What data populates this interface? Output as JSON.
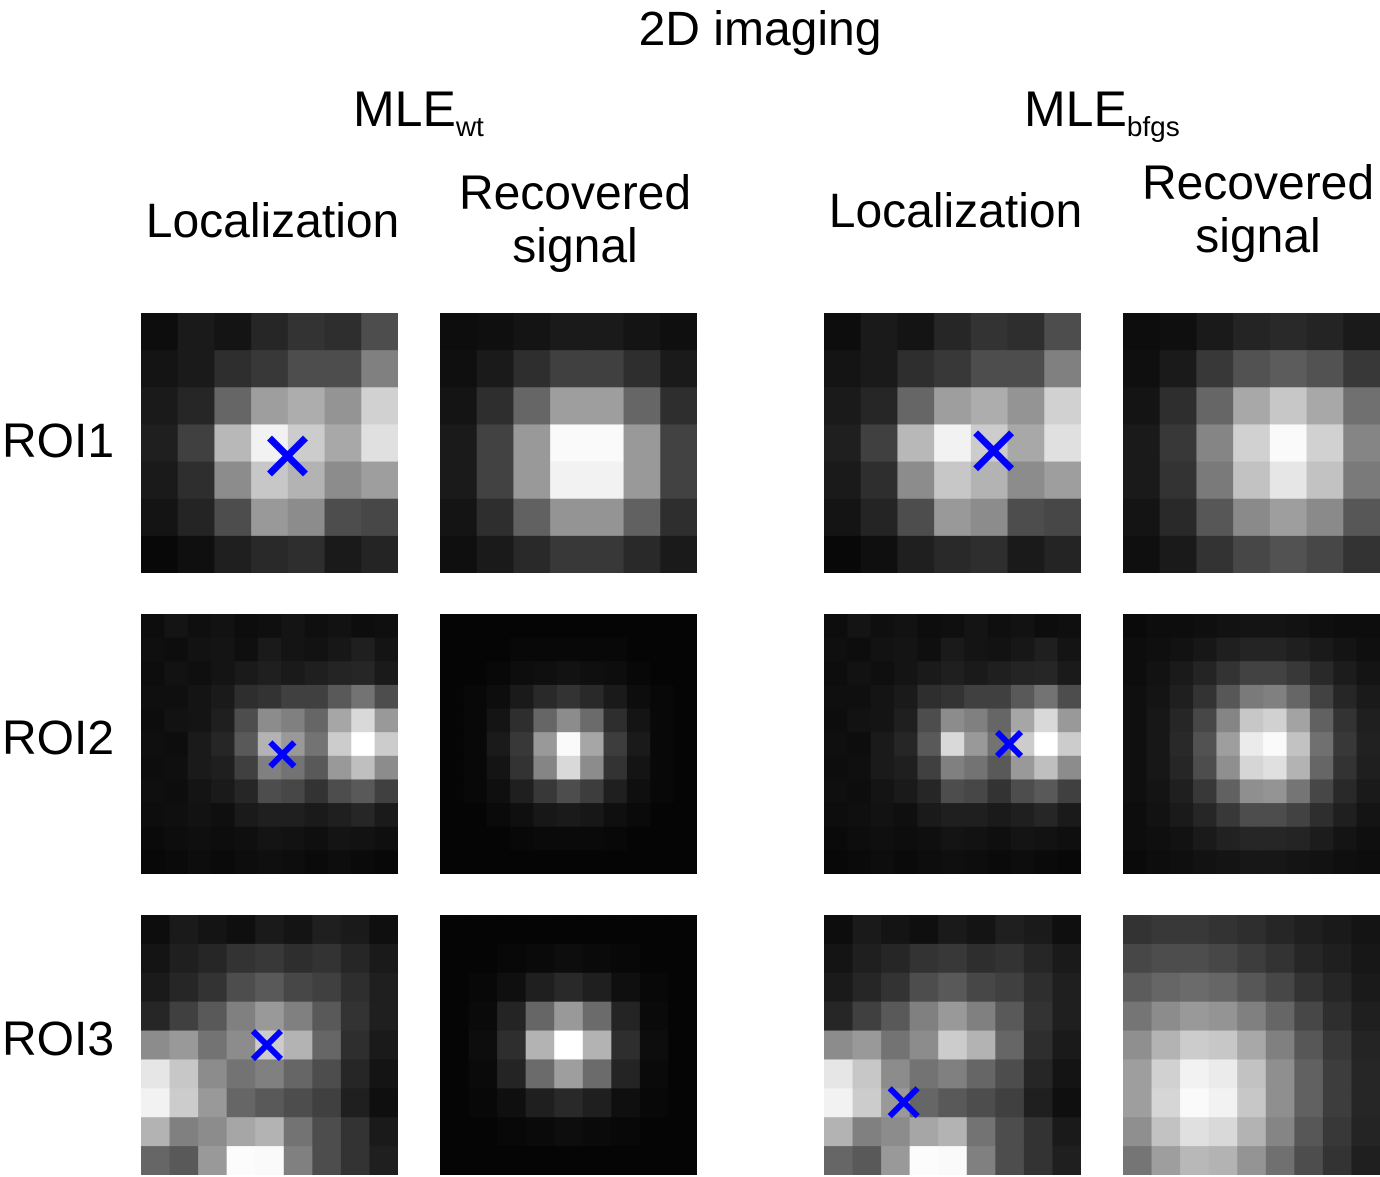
{
  "title": "2D imaging",
  "methods": [
    {
      "base": "MLE",
      "sub": "wt"
    },
    {
      "base": "MLE",
      "sub": "bfgs"
    }
  ],
  "column_headers": {
    "localization": "Localization",
    "recovered_line1": "Recovered",
    "recovered_line2": "signal"
  },
  "rows": [
    "ROI1",
    "ROI2",
    "ROI3"
  ],
  "marker_color": "#0000ff",
  "panels": {
    "roi1_wt_loc": {
      "cols": 7,
      "rows": 7,
      "marker": [
        0.57,
        0.55
      ],
      "marker_size": 36,
      "grid": [
        [
          0.05,
          0.1,
          0.08,
          0.15,
          0.2,
          0.18,
          0.3
        ],
        [
          0.08,
          0.1,
          0.18,
          0.22,
          0.3,
          0.3,
          0.5
        ],
        [
          0.1,
          0.15,
          0.4,
          0.62,
          0.68,
          0.58,
          0.82
        ],
        [
          0.12,
          0.25,
          0.72,
          0.95,
          0.8,
          0.66,
          0.88
        ],
        [
          0.1,
          0.18,
          0.55,
          0.78,
          0.7,
          0.55,
          0.62
        ],
        [
          0.08,
          0.14,
          0.3,
          0.6,
          0.55,
          0.3,
          0.28
        ],
        [
          0.03,
          0.06,
          0.12,
          0.16,
          0.18,
          0.1,
          0.14
        ]
      ]
    },
    "roi1_wt_rec": {
      "cols": 7,
      "rows": 7,
      "grid": [
        [
          0.05,
          0.06,
          0.08,
          0.1,
          0.1,
          0.08,
          0.06
        ],
        [
          0.06,
          0.1,
          0.18,
          0.25,
          0.25,
          0.18,
          0.1
        ],
        [
          0.08,
          0.18,
          0.4,
          0.62,
          0.62,
          0.4,
          0.18
        ],
        [
          0.1,
          0.26,
          0.6,
          0.98,
          0.98,
          0.6,
          0.26
        ],
        [
          0.1,
          0.26,
          0.6,
          0.95,
          0.95,
          0.6,
          0.26
        ],
        [
          0.08,
          0.18,
          0.38,
          0.58,
          0.58,
          0.38,
          0.18
        ],
        [
          0.06,
          0.1,
          0.16,
          0.22,
          0.22,
          0.16,
          0.1
        ]
      ]
    },
    "roi1_bfgs_loc": {
      "cols": 7,
      "rows": 7,
      "marker": [
        0.66,
        0.53
      ],
      "marker_size": 36,
      "grid": [
        [
          0.05,
          0.1,
          0.08,
          0.15,
          0.2,
          0.18,
          0.3
        ],
        [
          0.08,
          0.1,
          0.18,
          0.22,
          0.3,
          0.3,
          0.5
        ],
        [
          0.1,
          0.15,
          0.4,
          0.62,
          0.68,
          0.58,
          0.82
        ],
        [
          0.12,
          0.25,
          0.72,
          0.95,
          0.8,
          0.66,
          0.88
        ],
        [
          0.1,
          0.18,
          0.55,
          0.78,
          0.7,
          0.55,
          0.62
        ],
        [
          0.08,
          0.14,
          0.3,
          0.6,
          0.55,
          0.3,
          0.28
        ],
        [
          0.03,
          0.06,
          0.12,
          0.16,
          0.18,
          0.1,
          0.14
        ]
      ]
    },
    "roi1_bfgs_rec": {
      "cols": 7,
      "rows": 7,
      "grid": [
        [
          0.05,
          0.06,
          0.1,
          0.14,
          0.16,
          0.14,
          0.1
        ],
        [
          0.06,
          0.1,
          0.22,
          0.32,
          0.36,
          0.32,
          0.22
        ],
        [
          0.08,
          0.18,
          0.4,
          0.66,
          0.78,
          0.66,
          0.44
        ],
        [
          0.1,
          0.22,
          0.52,
          0.82,
          0.98,
          0.82,
          0.52
        ],
        [
          0.1,
          0.2,
          0.48,
          0.76,
          0.9,
          0.76,
          0.48
        ],
        [
          0.08,
          0.16,
          0.34,
          0.54,
          0.62,
          0.54,
          0.34
        ],
        [
          0.06,
          0.1,
          0.2,
          0.28,
          0.32,
          0.28,
          0.2
        ]
      ]
    },
    "roi2_wt_loc": {
      "cols": 11,
      "rows": 11,
      "marker": [
        0.55,
        0.54
      ],
      "marker_size": 24,
      "grid": [
        [
          0.05,
          0.08,
          0.06,
          0.07,
          0.05,
          0.06,
          0.08,
          0.06,
          0.07,
          0.05,
          0.06
        ],
        [
          0.06,
          0.05,
          0.07,
          0.08,
          0.06,
          0.1,
          0.08,
          0.07,
          0.09,
          0.12,
          0.08
        ],
        [
          0.05,
          0.07,
          0.06,
          0.08,
          0.1,
          0.12,
          0.1,
          0.12,
          0.14,
          0.15,
          0.1
        ],
        [
          0.06,
          0.06,
          0.08,
          0.1,
          0.18,
          0.2,
          0.25,
          0.25,
          0.35,
          0.45,
          0.3
        ],
        [
          0.05,
          0.07,
          0.08,
          0.12,
          0.3,
          0.55,
          0.5,
          0.4,
          0.65,
          0.85,
          0.6
        ],
        [
          0.06,
          0.05,
          0.1,
          0.15,
          0.35,
          0.7,
          0.6,
          0.45,
          0.8,
          1.0,
          0.8
        ],
        [
          0.05,
          0.06,
          0.1,
          0.12,
          0.25,
          0.5,
          0.45,
          0.35,
          0.6,
          0.75,
          0.55
        ],
        [
          0.06,
          0.05,
          0.08,
          0.1,
          0.15,
          0.3,
          0.28,
          0.2,
          0.3,
          0.35,
          0.25
        ],
        [
          0.05,
          0.06,
          0.07,
          0.06,
          0.1,
          0.12,
          0.12,
          0.1,
          0.12,
          0.15,
          0.1
        ],
        [
          0.04,
          0.05,
          0.06,
          0.05,
          0.06,
          0.08,
          0.07,
          0.06,
          0.08,
          0.07,
          0.06
        ],
        [
          0.03,
          0.04,
          0.05,
          0.04,
          0.05,
          0.06,
          0.05,
          0.04,
          0.05,
          0.04,
          0.03
        ]
      ]
    },
    "roi2_wt_rec": {
      "cols": 11,
      "rows": 11,
      "grid": [
        [
          0.02,
          0.02,
          0.02,
          0.02,
          0.02,
          0.02,
          0.02,
          0.02,
          0.02,
          0.02,
          0.02
        ],
        [
          0.02,
          0.02,
          0.02,
          0.03,
          0.03,
          0.03,
          0.03,
          0.03,
          0.02,
          0.02,
          0.02
        ],
        [
          0.02,
          0.02,
          0.03,
          0.05,
          0.06,
          0.07,
          0.06,
          0.05,
          0.03,
          0.02,
          0.02
        ],
        [
          0.02,
          0.03,
          0.05,
          0.1,
          0.16,
          0.2,
          0.16,
          0.1,
          0.05,
          0.03,
          0.02
        ],
        [
          0.02,
          0.03,
          0.08,
          0.18,
          0.4,
          0.55,
          0.42,
          0.18,
          0.08,
          0.03,
          0.02
        ],
        [
          0.02,
          0.03,
          0.1,
          0.22,
          0.6,
          0.98,
          0.65,
          0.24,
          0.1,
          0.03,
          0.02
        ],
        [
          0.02,
          0.03,
          0.08,
          0.2,
          0.52,
          0.85,
          0.55,
          0.2,
          0.08,
          0.03,
          0.02
        ],
        [
          0.02,
          0.03,
          0.06,
          0.12,
          0.22,
          0.3,
          0.24,
          0.12,
          0.06,
          0.03,
          0.02
        ],
        [
          0.02,
          0.02,
          0.04,
          0.06,
          0.09,
          0.1,
          0.09,
          0.06,
          0.04,
          0.02,
          0.02
        ],
        [
          0.02,
          0.02,
          0.02,
          0.03,
          0.04,
          0.04,
          0.04,
          0.03,
          0.02,
          0.02,
          0.02
        ],
        [
          0.02,
          0.02,
          0.02,
          0.02,
          0.02,
          0.02,
          0.02,
          0.02,
          0.02,
          0.02,
          0.02
        ]
      ]
    },
    "roi2_bfgs_loc": {
      "cols": 11,
      "rows": 11,
      "marker": [
        0.72,
        0.5
      ],
      "marker_size": 24,
      "grid": [
        [
          0.05,
          0.08,
          0.06,
          0.07,
          0.05,
          0.06,
          0.08,
          0.06,
          0.07,
          0.05,
          0.06
        ],
        [
          0.06,
          0.05,
          0.07,
          0.08,
          0.06,
          0.1,
          0.08,
          0.07,
          0.09,
          0.12,
          0.08
        ],
        [
          0.05,
          0.07,
          0.06,
          0.08,
          0.1,
          0.12,
          0.1,
          0.12,
          0.14,
          0.15,
          0.1
        ],
        [
          0.06,
          0.06,
          0.08,
          0.1,
          0.18,
          0.2,
          0.25,
          0.25,
          0.35,
          0.45,
          0.3
        ],
        [
          0.05,
          0.07,
          0.08,
          0.12,
          0.3,
          0.55,
          0.5,
          0.4,
          0.65,
          0.85,
          0.6
        ],
        [
          0.06,
          0.05,
          0.1,
          0.15,
          0.35,
          0.85,
          0.6,
          0.45,
          0.8,
          1.0,
          0.8
        ],
        [
          0.05,
          0.06,
          0.1,
          0.12,
          0.25,
          0.5,
          0.45,
          0.35,
          0.6,
          0.75,
          0.55
        ],
        [
          0.06,
          0.05,
          0.08,
          0.1,
          0.15,
          0.3,
          0.28,
          0.2,
          0.3,
          0.35,
          0.25
        ],
        [
          0.05,
          0.06,
          0.07,
          0.06,
          0.1,
          0.12,
          0.12,
          0.1,
          0.12,
          0.15,
          0.1
        ],
        [
          0.04,
          0.05,
          0.06,
          0.05,
          0.06,
          0.08,
          0.07,
          0.06,
          0.08,
          0.07,
          0.06
        ],
        [
          0.03,
          0.04,
          0.05,
          0.04,
          0.05,
          0.06,
          0.05,
          0.04,
          0.05,
          0.04,
          0.03
        ]
      ]
    },
    "roi2_bfgs_rec": {
      "cols": 11,
      "rows": 11,
      "grid": [
        [
          0.04,
          0.05,
          0.05,
          0.06,
          0.07,
          0.08,
          0.08,
          0.07,
          0.06,
          0.05,
          0.05
        ],
        [
          0.05,
          0.06,
          0.07,
          0.09,
          0.12,
          0.14,
          0.14,
          0.12,
          0.1,
          0.08,
          0.06
        ],
        [
          0.05,
          0.07,
          0.1,
          0.14,
          0.2,
          0.26,
          0.26,
          0.22,
          0.16,
          0.11,
          0.08
        ],
        [
          0.06,
          0.08,
          0.12,
          0.2,
          0.34,
          0.48,
          0.5,
          0.4,
          0.26,
          0.15,
          0.1
        ],
        [
          0.06,
          0.09,
          0.15,
          0.28,
          0.52,
          0.78,
          0.82,
          0.64,
          0.38,
          0.2,
          0.12
        ],
        [
          0.06,
          0.09,
          0.16,
          0.32,
          0.62,
          0.92,
          0.98,
          0.76,
          0.44,
          0.22,
          0.13
        ],
        [
          0.06,
          0.09,
          0.15,
          0.3,
          0.56,
          0.84,
          0.88,
          0.7,
          0.4,
          0.2,
          0.12
        ],
        [
          0.06,
          0.08,
          0.12,
          0.22,
          0.38,
          0.56,
          0.58,
          0.46,
          0.28,
          0.16,
          0.1
        ],
        [
          0.05,
          0.07,
          0.1,
          0.15,
          0.22,
          0.3,
          0.3,
          0.26,
          0.18,
          0.12,
          0.08
        ],
        [
          0.05,
          0.06,
          0.07,
          0.1,
          0.13,
          0.15,
          0.15,
          0.14,
          0.11,
          0.08,
          0.06
        ],
        [
          0.04,
          0.05,
          0.06,
          0.07,
          0.08,
          0.09,
          0.09,
          0.08,
          0.07,
          0.06,
          0.05
        ]
      ]
    },
    "roi3_wt_loc": {
      "cols": 9,
      "rows": 9,
      "marker": [
        0.49,
        0.5
      ],
      "marker_size": 28,
      "grid": [
        [
          0.05,
          0.1,
          0.08,
          0.06,
          0.1,
          0.08,
          0.12,
          0.1,
          0.06
        ],
        [
          0.08,
          0.12,
          0.15,
          0.2,
          0.22,
          0.18,
          0.2,
          0.15,
          0.1
        ],
        [
          0.1,
          0.15,
          0.2,
          0.3,
          0.35,
          0.28,
          0.25,
          0.18,
          0.12
        ],
        [
          0.15,
          0.25,
          0.35,
          0.5,
          0.6,
          0.5,
          0.35,
          0.2,
          0.12
        ],
        [
          0.55,
          0.6,
          0.45,
          0.55,
          0.8,
          0.7,
          0.4,
          0.18,
          0.1
        ],
        [
          0.9,
          0.78,
          0.55,
          0.45,
          0.5,
          0.4,
          0.3,
          0.15,
          0.08
        ],
        [
          0.95,
          0.8,
          0.6,
          0.4,
          0.35,
          0.3,
          0.25,
          0.12,
          0.06
        ],
        [
          0.7,
          0.5,
          0.55,
          0.65,
          0.7,
          0.45,
          0.3,
          0.2,
          0.1
        ],
        [
          0.4,
          0.35,
          0.6,
          0.99,
          0.98,
          0.5,
          0.3,
          0.2,
          0.12
        ]
      ]
    },
    "roi3_wt_rec": {
      "cols": 9,
      "rows": 9,
      "grid": [
        [
          0.02,
          0.02,
          0.02,
          0.02,
          0.02,
          0.02,
          0.02,
          0.02,
          0.02
        ],
        [
          0.02,
          0.02,
          0.03,
          0.04,
          0.05,
          0.04,
          0.03,
          0.02,
          0.02
        ],
        [
          0.02,
          0.03,
          0.06,
          0.12,
          0.16,
          0.12,
          0.06,
          0.03,
          0.02
        ],
        [
          0.02,
          0.04,
          0.14,
          0.4,
          0.6,
          0.42,
          0.14,
          0.04,
          0.02
        ],
        [
          0.02,
          0.05,
          0.18,
          0.7,
          1.0,
          0.7,
          0.18,
          0.05,
          0.02
        ],
        [
          0.02,
          0.04,
          0.14,
          0.42,
          0.62,
          0.42,
          0.14,
          0.04,
          0.02
        ],
        [
          0.02,
          0.03,
          0.06,
          0.12,
          0.16,
          0.12,
          0.06,
          0.03,
          0.02
        ],
        [
          0.02,
          0.02,
          0.03,
          0.04,
          0.05,
          0.04,
          0.03,
          0.02,
          0.02
        ],
        [
          0.02,
          0.02,
          0.02,
          0.02,
          0.02,
          0.02,
          0.02,
          0.02,
          0.02
        ]
      ]
    },
    "roi3_bfgs_loc": {
      "cols": 9,
      "rows": 9,
      "marker": [
        0.31,
        0.72
      ],
      "marker_size": 28,
      "grid": [
        [
          0.05,
          0.1,
          0.08,
          0.06,
          0.1,
          0.08,
          0.12,
          0.1,
          0.06
        ],
        [
          0.08,
          0.12,
          0.15,
          0.2,
          0.22,
          0.18,
          0.2,
          0.15,
          0.1
        ],
        [
          0.1,
          0.15,
          0.2,
          0.3,
          0.35,
          0.28,
          0.25,
          0.18,
          0.12
        ],
        [
          0.15,
          0.25,
          0.35,
          0.5,
          0.6,
          0.5,
          0.35,
          0.2,
          0.12
        ],
        [
          0.55,
          0.6,
          0.45,
          0.55,
          0.8,
          0.7,
          0.4,
          0.18,
          0.1
        ],
        [
          0.9,
          0.78,
          0.55,
          0.45,
          0.5,
          0.4,
          0.3,
          0.15,
          0.08
        ],
        [
          0.95,
          0.8,
          0.6,
          0.4,
          0.35,
          0.3,
          0.25,
          0.12,
          0.06
        ],
        [
          0.7,
          0.5,
          0.55,
          0.65,
          0.7,
          0.45,
          0.3,
          0.2,
          0.1
        ],
        [
          0.4,
          0.35,
          0.6,
          0.99,
          0.98,
          0.5,
          0.3,
          0.2,
          0.12
        ]
      ]
    },
    "roi3_bfgs_rec": {
      "cols": 9,
      "rows": 9,
      "grid": [
        [
          0.2,
          0.22,
          0.22,
          0.2,
          0.18,
          0.15,
          0.12,
          0.1,
          0.08
        ],
        [
          0.28,
          0.3,
          0.3,
          0.28,
          0.24,
          0.2,
          0.15,
          0.12,
          0.09
        ],
        [
          0.36,
          0.4,
          0.42,
          0.4,
          0.34,
          0.28,
          0.2,
          0.15,
          0.1
        ],
        [
          0.46,
          0.55,
          0.6,
          0.58,
          0.5,
          0.4,
          0.28,
          0.18,
          0.12
        ],
        [
          0.56,
          0.7,
          0.8,
          0.78,
          0.66,
          0.5,
          0.34,
          0.22,
          0.14
        ],
        [
          0.62,
          0.82,
          0.95,
          0.92,
          0.76,
          0.56,
          0.38,
          0.24,
          0.15
        ],
        [
          0.62,
          0.84,
          0.98,
          0.95,
          0.78,
          0.56,
          0.38,
          0.24,
          0.15
        ],
        [
          0.56,
          0.76,
          0.88,
          0.85,
          0.7,
          0.52,
          0.34,
          0.22,
          0.14
        ],
        [
          0.46,
          0.62,
          0.72,
          0.7,
          0.58,
          0.44,
          0.3,
          0.2,
          0.12
        ]
      ]
    }
  }
}
